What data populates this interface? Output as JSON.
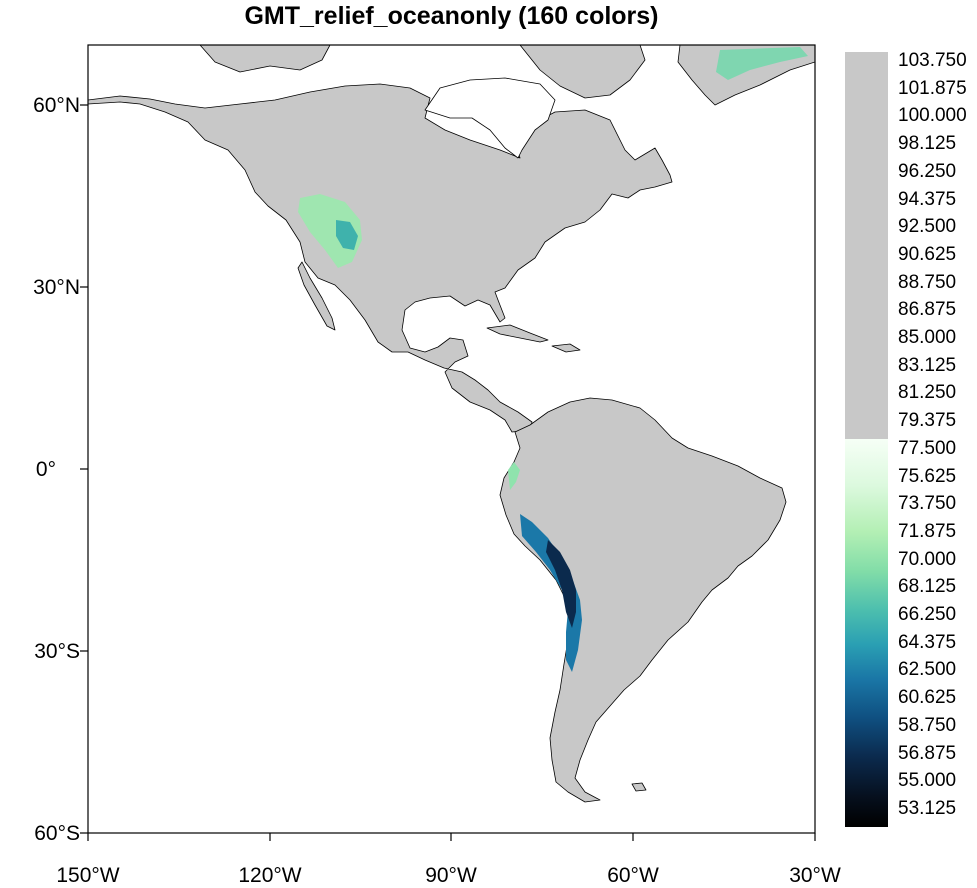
{
  "title": "GMT_relief_oceanonly (160 colors)",
  "colors": {
    "land": "#c8c8c8",
    "ocean": "#ffffff",
    "coast": "#000000"
  },
  "axes": {
    "lon_range": [
      -150,
      -30
    ],
    "lat_range": [
      -60,
      70
    ],
    "x_ticks": [
      "150°W",
      "120°W",
      "90°W",
      "60°W",
      "30°W"
    ],
    "y_ticks": [
      "60°N",
      "30°N",
      "0°",
      "30°S",
      "60°S"
    ]
  },
  "colorbar": {
    "labels": [
      "103.750",
      "101.875",
      "100.000",
      "98.125",
      "96.250",
      "94.375",
      "92.500",
      "90.625",
      "88.750",
      "86.875",
      "85.000",
      "83.125",
      "81.250",
      "79.375",
      "77.500",
      "75.625",
      "73.750",
      "71.875",
      "70.000",
      "68.125",
      "66.250",
      "64.375",
      "62.500",
      "60.625",
      "58.750",
      "56.875",
      "55.000",
      "53.125"
    ],
    "gray_from": 79.375,
    "colormap": "GMT_relief_oceanonly"
  }
}
